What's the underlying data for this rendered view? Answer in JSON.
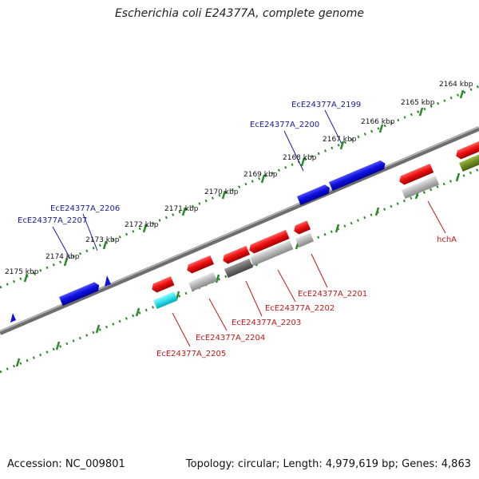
{
  "title": "Escherichia coli E24377A, complete genome",
  "footer": {
    "accession": "Accession: NC_009801",
    "topology": "Topology: circular; Length: 4,979,619 bp; Genes: 4,863"
  },
  "colors": {
    "forward_gene": "#1010e0",
    "reverse_gene": "#e01010",
    "grey_feature": "#b4b4b4",
    "dark_feature": "#6a6a6a",
    "cyan_feature": "#2ae0ee",
    "olive_feature": "#6a8a20",
    "tick": "#2a8a2a",
    "backbone": "#7a7a7a",
    "blue_label": "#1a1a9c",
    "red_label": "#c01818"
  },
  "scale_labels": [
    "2164 kbp",
    "2165 kbp",
    "2166 kbp",
    "2167 kbp",
    "2168 kbp",
    "2169 kbp",
    "2170 kbp",
    "2171 kbp",
    "2172 kbp",
    "2173 kbp",
    "2174 kbp",
    "2175 kbp"
  ],
  "forward_labels": [
    "EcE24377A_2199",
    "EcE24377A_2200",
    "EcE24377A_2206",
    "EcE24377A_2207"
  ],
  "reverse_labels": [
    "hchA",
    "EcE24377A_2201",
    "EcE24377A_2202",
    "EcE24377A_2203",
    "EcE24377A_2204",
    "EcE24377A_2205"
  ]
}
